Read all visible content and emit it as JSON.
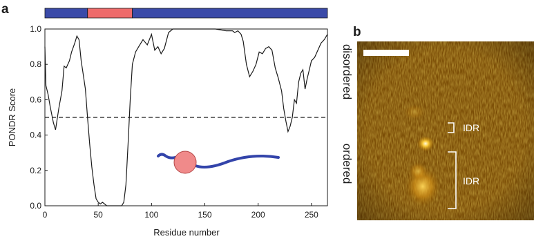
{
  "panels": {
    "a": "a",
    "b": "b"
  },
  "chart_data": {
    "type": "line",
    "xlabel": "Residue number",
    "ylabel": "PONDR Score",
    "xlim": [
      0,
      265
    ],
    "ylim": [
      0,
      1.0
    ],
    "xticks": [
      "0",
      "50",
      "100",
      "150",
      "200",
      "250"
    ],
    "yticks": [
      "0.0",
      "0.2",
      "0.4",
      "0.6",
      "0.8",
      "1.0"
    ],
    "threshold": 0.5,
    "side_labels": {
      "upper": "disordered",
      "lower": "ordered"
    },
    "domain_bar": [
      {
        "start": 0,
        "end": 40,
        "color": "#3a4aa8"
      },
      {
        "start": 40,
        "end": 82,
        "color": "#ee6b6b"
      },
      {
        "start": 82,
        "end": 265,
        "color": "#3a4aa8"
      }
    ],
    "series": [
      {
        "x": [
          0,
          1,
          3,
          5,
          8,
          10,
          13,
          16,
          18,
          20,
          23,
          25,
          28,
          30,
          32,
          34,
          36,
          38,
          40,
          42,
          44,
          46,
          48,
          50,
          52,
          54,
          56,
          58,
          60,
          65,
          70,
          72,
          74,
          76,
          78,
          80,
          82,
          85,
          88,
          92,
          96,
          100,
          103,
          106,
          109,
          112,
          116,
          120,
          130,
          140,
          150,
          160,
          170,
          176,
          178,
          181,
          184,
          186,
          189,
          192,
          195,
          198,
          201,
          204,
          207,
          210,
          213,
          216,
          219,
          222,
          224,
          226,
          228,
          230,
          232,
          234,
          236,
          238,
          240,
          242,
          244,
          246,
          248,
          250,
          253,
          256,
          259,
          262,
          265
        ],
        "y": [
          0.9,
          0.68,
          0.63,
          0.56,
          0.47,
          0.43,
          0.55,
          0.65,
          0.79,
          0.78,
          0.82,
          0.87,
          0.92,
          0.96,
          0.94,
          0.82,
          0.74,
          0.66,
          0.5,
          0.35,
          0.22,
          0.12,
          0.04,
          0.02,
          0.01,
          0.02,
          0.01,
          0.0,
          0.0,
          0.0,
          0.0,
          0.0,
          0.02,
          0.12,
          0.35,
          0.6,
          0.8,
          0.87,
          0.9,
          0.94,
          0.91,
          0.97,
          0.88,
          0.9,
          0.86,
          0.89,
          0.98,
          1.0,
          1.0,
          1.0,
          1.0,
          1.0,
          0.99,
          0.99,
          0.98,
          0.99,
          0.97,
          0.93,
          0.8,
          0.73,
          0.76,
          0.8,
          0.87,
          0.86,
          0.89,
          0.9,
          0.88,
          0.78,
          0.72,
          0.65,
          0.55,
          0.48,
          0.42,
          0.45,
          0.5,
          0.6,
          0.58,
          0.7,
          0.75,
          0.77,
          0.66,
          0.72,
          0.77,
          0.82,
          0.84,
          0.88,
          0.92,
          0.94,
          0.97
        ],
        "color": "#1a1a1a"
      }
    ]
  },
  "inset": {
    "circle_color": "#f08a8a",
    "chain_color": "#3344aa"
  },
  "micrograph": {
    "idr_labels": [
      "IDR",
      "IDR"
    ]
  }
}
